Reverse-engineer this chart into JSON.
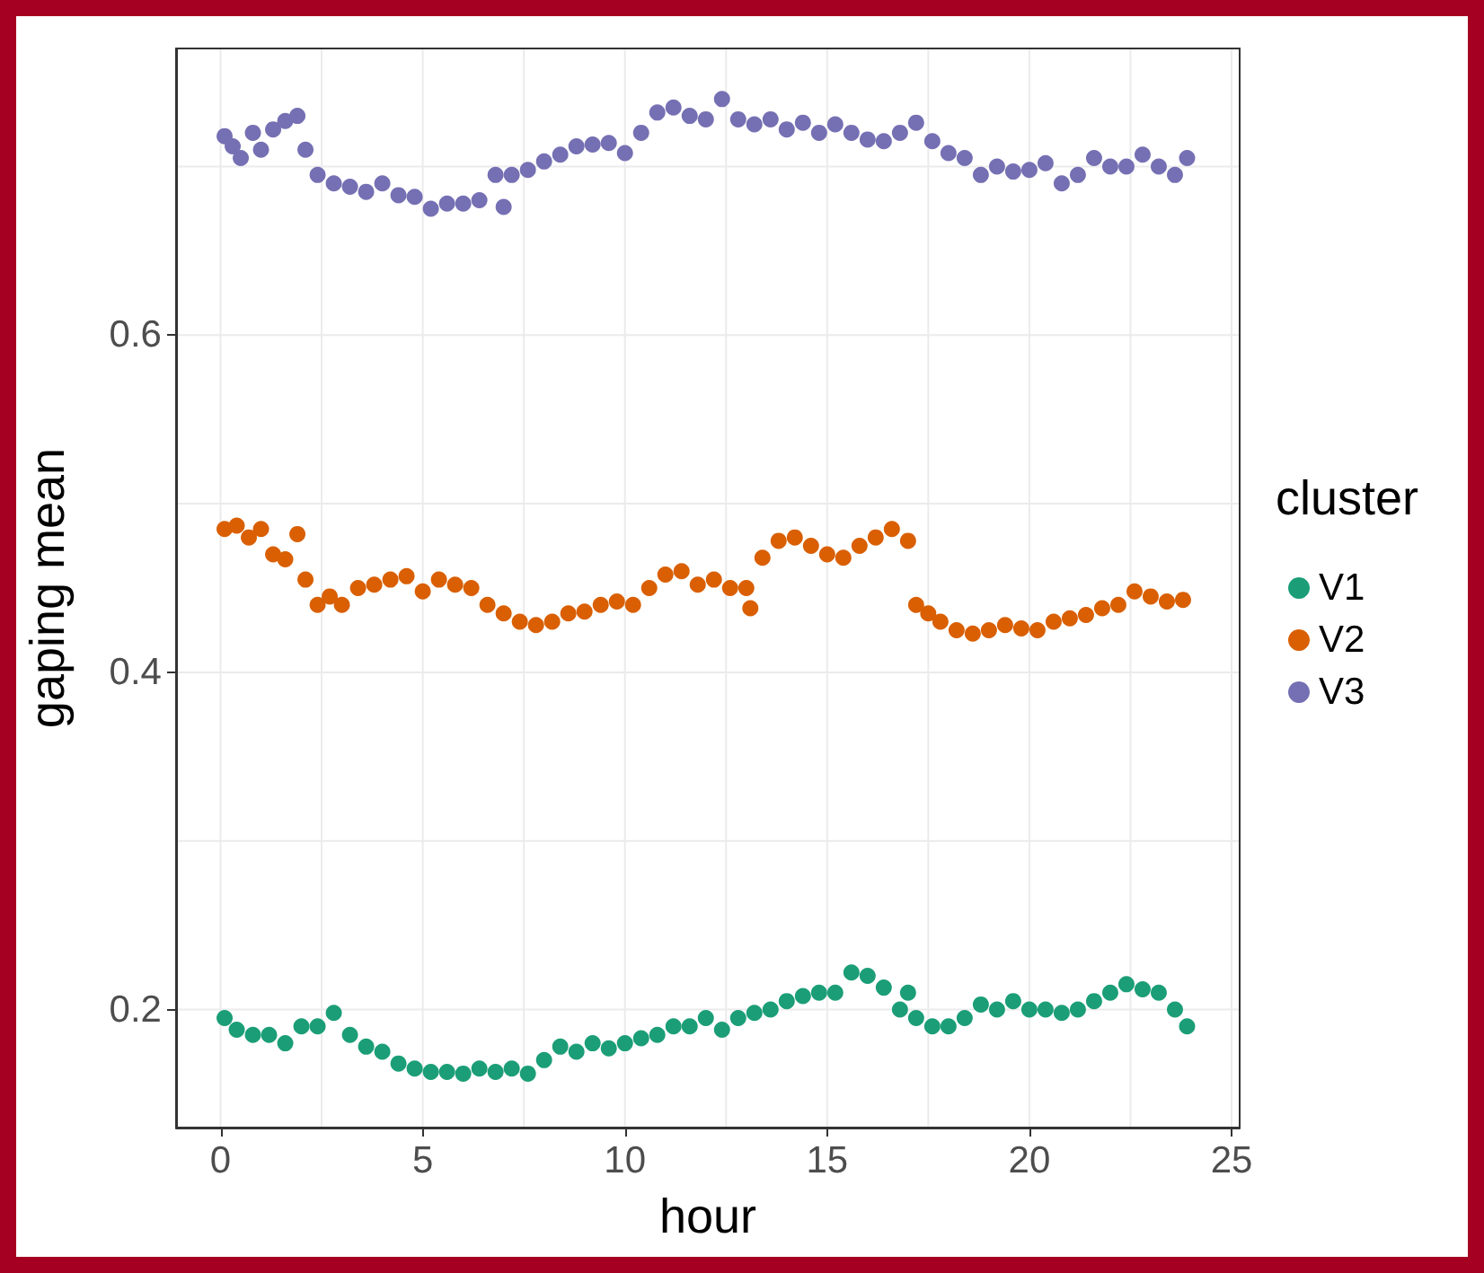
{
  "chart_data": {
    "type": "scatter",
    "xlabel": "hour",
    "ylabel": "gaping mean",
    "legend_title": "cluster",
    "legend": "right",
    "grid": true,
    "marker": "circle",
    "xlim": [
      -1.1,
      25.2
    ],
    "ylim": [
      0.13,
      0.77
    ],
    "xticks": [
      0,
      {
        "value": 2.5,
        "label": null
      },
      5,
      {
        "value": 7.5,
        "label": null
      },
      10,
      {
        "value": 12.5,
        "label": null
      },
      15,
      {
        "value": 17.5,
        "label": null
      },
      20,
      {
        "value": 22.5,
        "label": null
      },
      25
    ],
    "yticks": [
      0.2,
      {
        "value": 0.3,
        "label": null
      },
      0.4,
      {
        "value": 0.5,
        "label": null
      },
      0.6,
      {
        "value": 0.7,
        "label": null
      }
    ],
    "series": [
      {
        "name": "V1",
        "color": "#1b9e77",
        "x": [
          0.1,
          0.4,
          0.8,
          1.2,
          1.6,
          2.0,
          2.4,
          2.8,
          3.2,
          3.6,
          4.0,
          4.4,
          4.8,
          5.2,
          5.6,
          6.0,
          6.4,
          6.8,
          7.2,
          7.6,
          8.0,
          8.4,
          8.8,
          9.2,
          9.6,
          10.0,
          10.4,
          10.8,
          11.2,
          11.6,
          12.0,
          12.4,
          12.8,
          13.2,
          13.6,
          14.0,
          14.4,
          14.8,
          15.2,
          15.6,
          16.0,
          16.4,
          16.8,
          17.0,
          17.2,
          17.6,
          18.0,
          18.4,
          18.8,
          19.2,
          19.6,
          20.0,
          20.4,
          20.8,
          21.2,
          21.6,
          22.0,
          22.4,
          22.8,
          23.2,
          23.6,
          23.9
        ],
        "values": [
          0.195,
          0.188,
          0.185,
          0.185,
          0.18,
          0.19,
          0.19,
          0.198,
          0.185,
          0.178,
          0.175,
          0.168,
          0.165,
          0.163,
          0.163,
          0.162,
          0.165,
          0.163,
          0.165,
          0.162,
          0.17,
          0.178,
          0.175,
          0.18,
          0.177,
          0.18,
          0.183,
          0.185,
          0.19,
          0.19,
          0.195,
          0.188,
          0.195,
          0.198,
          0.2,
          0.205,
          0.208,
          0.21,
          0.21,
          0.222,
          0.22,
          0.213,
          0.2,
          0.21,
          0.195,
          0.19,
          0.19,
          0.195,
          0.203,
          0.2,
          0.205,
          0.2,
          0.2,
          0.198,
          0.2,
          0.205,
          0.21,
          0.215,
          0.212,
          0.21,
          0.2,
          0.19
        ]
      },
      {
        "name": "V2",
        "color": "#d95f02",
        "x": [
          0.1,
          0.4,
          0.7,
          1.0,
          1.3,
          1.6,
          1.9,
          2.1,
          2.4,
          2.7,
          3.0,
          3.4,
          3.8,
          4.2,
          4.6,
          5.0,
          5.4,
          5.8,
          6.2,
          6.6,
          7.0,
          7.4,
          7.8,
          8.2,
          8.6,
          9.0,
          9.4,
          9.8,
          10.2,
          10.6,
          11.0,
          11.4,
          11.8,
          12.2,
          12.6,
          13.0,
          13.1,
          13.4,
          13.8,
          14.2,
          14.6,
          15.0,
          15.4,
          15.8,
          16.2,
          16.6,
          17.0,
          17.2,
          17.5,
          17.8,
          18.2,
          18.6,
          19.0,
          19.4,
          19.8,
          20.2,
          20.6,
          21.0,
          21.4,
          21.8,
          22.2,
          22.6,
          23.0,
          23.4,
          23.8
        ],
        "values": [
          0.485,
          0.487,
          0.48,
          0.485,
          0.47,
          0.467,
          0.482,
          0.455,
          0.44,
          0.445,
          0.44,
          0.45,
          0.452,
          0.455,
          0.457,
          0.448,
          0.455,
          0.452,
          0.45,
          0.44,
          0.435,
          0.43,
          0.428,
          0.43,
          0.435,
          0.436,
          0.44,
          0.442,
          0.44,
          0.45,
          0.458,
          0.46,
          0.452,
          0.455,
          0.45,
          0.45,
          0.438,
          0.468,
          0.478,
          0.48,
          0.475,
          0.47,
          0.468,
          0.475,
          0.48,
          0.485,
          0.478,
          0.44,
          0.435,
          0.43,
          0.425,
          0.423,
          0.425,
          0.428,
          0.426,
          0.425,
          0.43,
          0.432,
          0.434,
          0.438,
          0.44,
          0.448,
          0.445,
          0.442,
          0.443
        ]
      },
      {
        "name": "V3",
        "color": "#7570b3",
        "x": [
          0.1,
          0.3,
          0.5,
          0.8,
          1.0,
          1.3,
          1.6,
          1.9,
          2.1,
          2.4,
          2.8,
          3.2,
          3.6,
          4.0,
          4.4,
          4.8,
          5.2,
          5.6,
          6.0,
          6.4,
          6.8,
          7.0,
          7.2,
          7.6,
          8.0,
          8.4,
          8.8,
          9.2,
          9.6,
          10.0,
          10.4,
          10.8,
          11.2,
          11.6,
          12.0,
          12.4,
          12.8,
          13.2,
          13.6,
          14.0,
          14.4,
          14.8,
          15.2,
          15.6,
          16.0,
          16.4,
          16.8,
          17.2,
          17.6,
          18.0,
          18.4,
          18.8,
          19.2,
          19.6,
          20.0,
          20.4,
          20.8,
          21.2,
          21.6,
          22.0,
          22.4,
          22.8,
          23.2,
          23.6,
          23.9
        ],
        "values": [
          0.718,
          0.712,
          0.705,
          0.72,
          0.71,
          0.722,
          0.727,
          0.73,
          0.71,
          0.695,
          0.69,
          0.688,
          0.685,
          0.69,
          0.683,
          0.682,
          0.675,
          0.678,
          0.678,
          0.68,
          0.695,
          0.676,
          0.695,
          0.698,
          0.703,
          0.707,
          0.712,
          0.713,
          0.714,
          0.708,
          0.72,
          0.732,
          0.735,
          0.73,
          0.728,
          0.74,
          0.728,
          0.725,
          0.728,
          0.722,
          0.726,
          0.72,
          0.725,
          0.72,
          0.716,
          0.715,
          0.72,
          0.726,
          0.715,
          0.708,
          0.705,
          0.695,
          0.7,
          0.697,
          0.698,
          0.702,
          0.69,
          0.695,
          0.705,
          0.7,
          0.7,
          0.707,
          0.7,
          0.695,
          0.705
        ]
      }
    ]
  }
}
